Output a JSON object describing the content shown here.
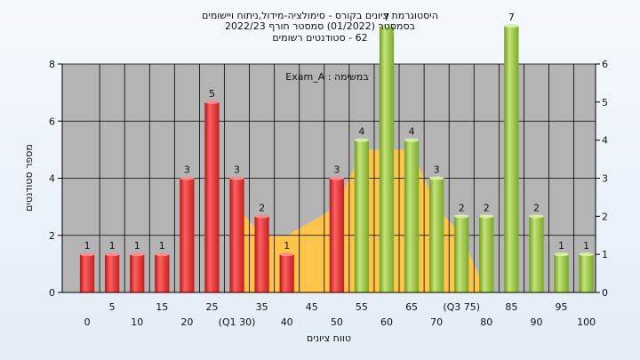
{
  "chart_data": {
    "type": "bar",
    "title_lines": [
      "היסטוגרמת ציונים בקורס - סימולציה-מידול,ניתוח ויישומים",
      "בסמסטר  (01/2022)  סמסטר חורף 2022/23",
      "62 - סטודנטים רשומים"
    ],
    "annotation": "במשימה : Exam_A",
    "xlabel": "טווח ציונים",
    "ylabel": "מספר סטודנטים",
    "ylim": [
      0,
      8
    ],
    "yticks_left": [
      "0",
      "2",
      "4",
      "6",
      "8"
    ],
    "y2lim": [
      0,
      6
    ],
    "yticks_right": [
      "0",
      "1",
      "2",
      "3",
      "4",
      "5",
      "6"
    ],
    "categories": [
      "0",
      "5",
      "10",
      "15",
      "20",
      "25",
      "(Q1 30)",
      "35",
      "40",
      "45",
      "50",
      "55",
      "60",
      "65",
      "70",
      "(Q3 75)",
      "80",
      "85",
      "90",
      "95",
      "100"
    ],
    "values": [
      1,
      1,
      1,
      1,
      3,
      5,
      3,
      2,
      1,
      0,
      3,
      4,
      7,
      4,
      3,
      2,
      2,
      7,
      2,
      1,
      1
    ],
    "value_labels": [
      "1",
      "1",
      "1",
      "1",
      "3",
      "5",
      "3",
      "2",
      "1",
      "",
      "3",
      "4",
      "7",
      "4",
      "3",
      "2",
      "2",
      "7",
      "2",
      "1",
      "1"
    ],
    "bar_colors": [
      "red",
      "red",
      "red",
      "red",
      "red",
      "red",
      "red",
      "red",
      "red",
      "red",
      "red",
      "green",
      "green",
      "green",
      "green",
      "green",
      "green",
      "green",
      "green",
      "green",
      "green"
    ],
    "band": {
      "points_x": [
        30,
        35,
        40,
        50,
        55,
        65,
        70,
        75,
        80
      ],
      "points_y": [
        3,
        2,
        2,
        3,
        5,
        5,
        3,
        2,
        0
      ],
      "color": "#ffc54a"
    },
    "colors": {
      "plot_bg": "#b4b4b4",
      "bar_red": "#e23030",
      "bar_green": "#93c03c",
      "grid": "#000000"
    },
    "grid": true
  }
}
